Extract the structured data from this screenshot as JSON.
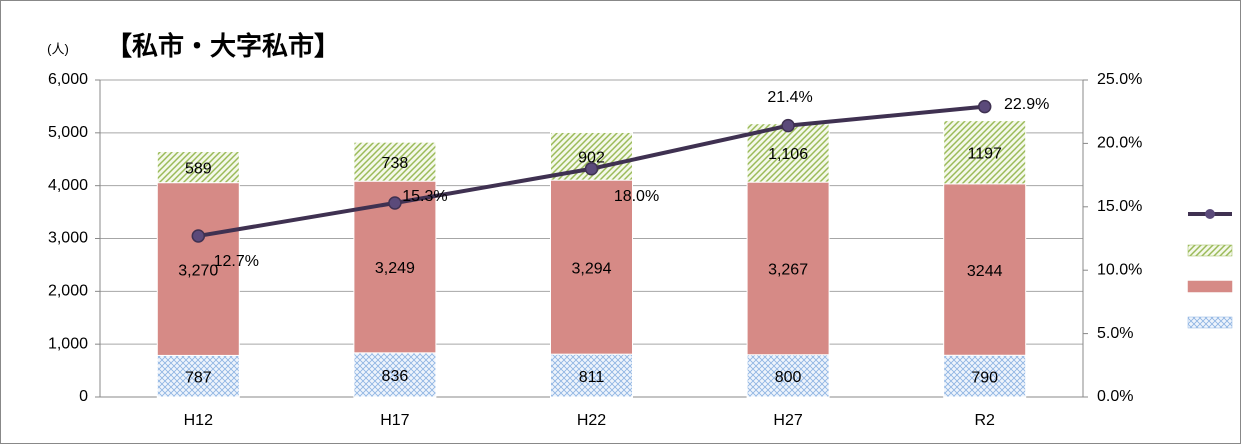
{
  "chart_data": {
    "type": "bar",
    "title": "【私市・大字私市】",
    "y_label": "(人)",
    "categories": [
      "H12",
      "H17",
      "H22",
      "H27",
      "R2"
    ],
    "stacked": true,
    "series": [
      {
        "color": "#8db3e2",
        "values": [
          787,
          836,
          811,
          800,
          790
        ]
      },
      {
        "color": "#d68a86",
        "values": [
          3270,
          3249,
          3294,
          3267,
          3244
        ],
        "value_labels": [
          "3,270",
          "3,249",
          "3,294",
          "3,267",
          "3244"
        ]
      },
      {
        "color": "#9bbb59",
        "values": [
          589,
          738,
          902,
          1106,
          1197
        ],
        "value_labels": [
          "589",
          "738",
          "902",
          "1,106",
          "1197"
        ]
      },
      {
        "type": "line",
        "axis": "y2",
        "color": "#3f3151",
        "values": [
          12.7,
          15.3,
          18.0,
          21.4,
          22.9
        ],
        "value_labels": [
          "12.7%",
          "15.3%",
          "18.0%",
          "21.4%",
          "22.9%"
        ]
      }
    ],
    "ylim": [
      0,
      6000
    ],
    "yticks": [
      0,
      {
        "value": 1000,
        "label": "1,000"
      },
      {
        "value": 2000,
        "label": "2,000"
      },
      {
        "value": 3000,
        "label": "3,000"
      },
      {
        "value": 4000,
        "label": "4,000"
      },
      {
        "value": 5000,
        "label": "5,000"
      },
      {
        "value": 6000,
        "label": "6,000"
      }
    ],
    "y2lim": [
      0,
      25
    ],
    "y2ticks": [
      {
        "value": 0,
        "label": "0.0%"
      },
      {
        "value": 5,
        "label": "5.0%"
      },
      {
        "value": 10,
        "label": "10.0%"
      },
      {
        "value": 15,
        "label": "15.0%"
      },
      {
        "value": 20,
        "label": "20.0%"
      },
      {
        "value": 25,
        "label": "25.0%"
      }
    ],
    "grid": true,
    "legend": "right"
  }
}
